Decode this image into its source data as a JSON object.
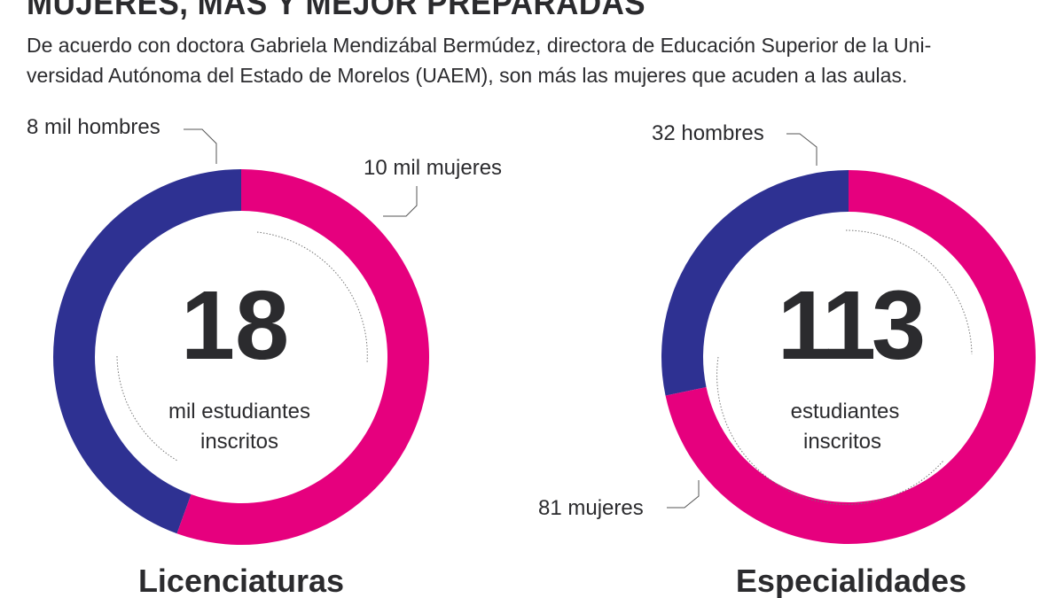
{
  "header": {
    "title": "MUJERES, MÁS Y MEJOR PREPARADAS",
    "subtitle_line1": "De acuerdo con doctora Gabriela Mendizábal Bermúdez, directora de Educación Superior de la Uni-",
    "subtitle_line2": "versidad Autónoma del Estado de Morelos (UAEM), son más las mujeres que acuden a las aulas."
  },
  "colors": {
    "hombres": "#2e3192",
    "mujeres": "#e6007e"
  },
  "chart_data": [
    {
      "type": "pie",
      "variant": "donut",
      "title": "Licenciaturas",
      "total": 18,
      "total_label": "18",
      "caption_line1": "mil estudiantes",
      "caption_line2": "inscritos",
      "slices": [
        {
          "label": "8 mil hombres",
          "value": 8
        },
        {
          "label": "10 mil mujeres",
          "value": 10
        }
      ]
    },
    {
      "type": "pie",
      "variant": "donut",
      "title": "Especialidades",
      "total": 113,
      "total_label": "113",
      "caption_line1": "estudiantes",
      "caption_line2": "inscritos",
      "slices": [
        {
          "label": "32 hombres",
          "value": 32
        },
        {
          "label": "81 mujeres",
          "value": 81
        }
      ]
    }
  ]
}
